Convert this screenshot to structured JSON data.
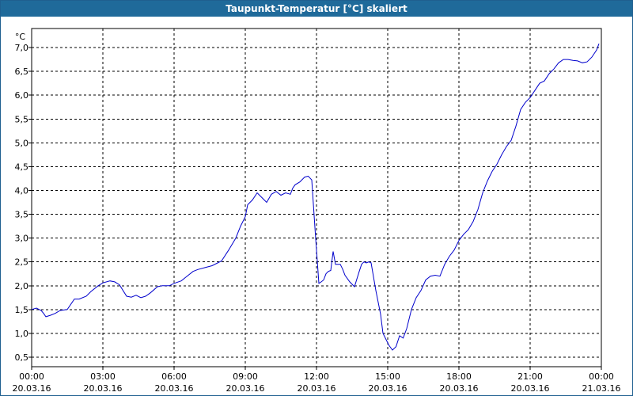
{
  "window": {
    "title": "Taupunkt-Temperatur [°C] skaliert"
  },
  "chart_data": {
    "type": "line",
    "title": "Taupunkt-Temperatur [°C] skaliert",
    "ylabel": "°C",
    "ylim": [
      0.3,
      7.4
    ],
    "yticks": [
      "0,5",
      "1,0",
      "1,5",
      "2,0",
      "2,5",
      "3,0",
      "3,5",
      "4,0",
      "4,5",
      "5,0",
      "5,5",
      "6,0",
      "6,5",
      "7,0"
    ],
    "ytick_values": [
      0.5,
      1.0,
      1.5,
      2.0,
      2.5,
      3.0,
      3.5,
      4.0,
      4.5,
      5.0,
      5.5,
      6.0,
      6.5,
      7.0
    ],
    "xlim": [
      0,
      24
    ],
    "xticks": [
      {
        "x": 0,
        "time": "00:00",
        "date": "20.03.16"
      },
      {
        "x": 3,
        "time": "03:00",
        "date": "20.03.16"
      },
      {
        "x": 6,
        "time": "06:00",
        "date": "20.03.16"
      },
      {
        "x": 9,
        "time": "09:00",
        "date": "20.03.16"
      },
      {
        "x": 12,
        "time": "12:00",
        "date": "20.03.16"
      },
      {
        "x": 15,
        "time": "15:00",
        "date": "20.03.16"
      },
      {
        "x": 18,
        "time": "18:00",
        "date": "20.03.16"
      },
      {
        "x": 21,
        "time": "21:00",
        "date": "20.03.16"
      },
      {
        "x": 24,
        "time": "00:00",
        "date": "21.03.16"
      }
    ],
    "grid": true,
    "series": [
      {
        "color": "#0000cc",
        "x": [
          0.0,
          0.2,
          0.4,
          0.5,
          0.6,
          0.8,
          1.0,
          1.2,
          1.5,
          1.8,
          2.0,
          2.3,
          2.5,
          2.8,
          3.0,
          3.3,
          3.5,
          3.7,
          4.0,
          4.2,
          4.4,
          4.6,
          4.8,
          5.0,
          5.3,
          5.5,
          5.8,
          6.0,
          6.3,
          6.5,
          6.8,
          7.0,
          7.3,
          7.6,
          8.0,
          8.3,
          8.6,
          8.8,
          9.0,
          9.1,
          9.3,
          9.5,
          9.7,
          9.9,
          10.1,
          10.3,
          10.5,
          10.7,
          10.9,
          11.0,
          11.1,
          11.3,
          11.5,
          11.65,
          11.8,
          11.95,
          12.1,
          12.2,
          12.3,
          12.4,
          12.5,
          12.6,
          12.7,
          12.8,
          13.0,
          13.1,
          13.2,
          13.4,
          13.6,
          13.8,
          13.9,
          14.0,
          14.1,
          14.2,
          14.3,
          14.5,
          14.7,
          14.8,
          14.95,
          15.05,
          15.2,
          15.35,
          15.5,
          15.65,
          15.8,
          16.0,
          16.2,
          16.4,
          16.6,
          16.8,
          17.0,
          17.2,
          17.4,
          17.6,
          17.8,
          18.0,
          18.2,
          18.4,
          18.6,
          18.8,
          19.0,
          19.2,
          19.4,
          19.6,
          19.8,
          20.0,
          20.2,
          20.4,
          20.6,
          20.8,
          21.0,
          21.2,
          21.4,
          21.6,
          21.8,
          22.0,
          22.2,
          22.4,
          22.6,
          22.8,
          23.0,
          23.2,
          23.4,
          23.6,
          23.8,
          23.9
        ],
        "y": [
          1.5,
          1.53,
          1.48,
          1.42,
          1.35,
          1.38,
          1.42,
          1.48,
          1.5,
          1.72,
          1.72,
          1.78,
          1.88,
          2.0,
          2.06,
          2.1,
          2.08,
          2.02,
          1.78,
          1.76,
          1.8,
          1.75,
          1.78,
          1.85,
          1.98,
          2.0,
          2.0,
          2.05,
          2.1,
          2.18,
          2.3,
          2.34,
          2.38,
          2.42,
          2.52,
          2.75,
          3.0,
          3.25,
          3.45,
          3.7,
          3.8,
          3.95,
          3.85,
          3.75,
          3.92,
          3.98,
          3.9,
          3.95,
          3.92,
          4.05,
          4.12,
          4.18,
          4.28,
          4.3,
          4.22,
          3.1,
          2.05,
          2.08,
          2.12,
          2.25,
          2.3,
          2.32,
          2.72,
          2.45,
          2.45,
          2.35,
          2.22,
          2.08,
          1.98,
          2.3,
          2.45,
          2.5,
          2.48,
          2.5,
          2.48,
          1.9,
          1.4,
          1.0,
          0.85,
          0.75,
          0.65,
          0.72,
          0.95,
          0.9,
          1.1,
          1.5,
          1.75,
          1.9,
          2.12,
          2.2,
          2.22,
          2.2,
          2.45,
          2.62,
          2.75,
          2.95,
          3.08,
          3.18,
          3.35,
          3.6,
          3.95,
          4.2,
          4.4,
          4.55,
          4.75,
          4.92,
          5.05,
          5.35,
          5.7,
          5.85,
          5.95,
          6.1,
          6.25,
          6.3,
          6.45,
          6.55,
          6.68,
          6.75,
          6.75,
          6.73,
          6.72,
          6.68,
          6.7,
          6.8,
          6.95,
          7.08
        ]
      }
    ]
  }
}
